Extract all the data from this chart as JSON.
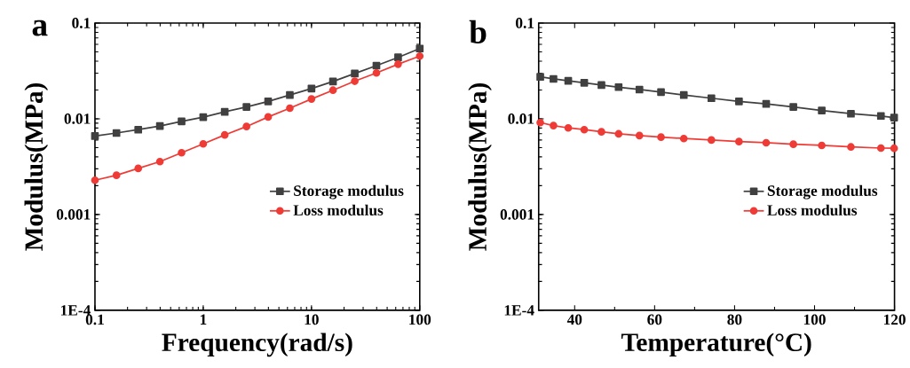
{
  "chart_data": [
    {
      "type": "line",
      "title": "a",
      "xlabel": "Frequency(rad/s)",
      "ylabel": "Modulus(MPa)",
      "log": "xy",
      "legend": "right",
      "grid": false,
      "x": [
        0.1,
        0.158,
        0.251,
        0.398,
        0.631,
        1,
        1.58,
        2.51,
        3.98,
        6.31,
        10,
        15.8,
        25.1,
        39.8,
        63.1,
        100
      ],
      "xlim": [
        0.1,
        100
      ],
      "xticks": [
        0.1,
        1,
        10,
        100
      ],
      "ylim": [
        0.0001,
        0.1
      ],
      "yticks": [
        {
          "value": 0.0001,
          "label": "1E-4"
        },
        0.001,
        0.01,
        0.1
      ],
      "series": [
        {
          "name": "Storage modulus",
          "color": "#404040",
          "marker": "square",
          "values": [
            0.0066,
            0.0071,
            0.0077,
            0.0084,
            0.0094,
            0.0104,
            0.0118,
            0.0133,
            0.0152,
            0.0177,
            0.0207,
            0.0245,
            0.0297,
            0.0359,
            0.0438,
            0.0542
          ]
        },
        {
          "name": "Loss modulus",
          "color": "#ef3b36",
          "marker": "circle",
          "values": [
            0.00228,
            0.00257,
            0.00303,
            0.00357,
            0.00442,
            0.00547,
            0.00678,
            0.0083,
            0.01045,
            0.0129,
            0.0161,
            0.0199,
            0.0247,
            0.0301,
            0.0372,
            0.0452
          ]
        }
      ]
    },
    {
      "type": "line",
      "title": "b",
      "xlabel": "Temperature(°C)",
      "ylabel": "Modulus(MPa)",
      "log": "y",
      "legend": "right",
      "grid": false,
      "x": [
        31.4,
        34.7,
        38.4,
        42.4,
        46.7,
        51.0,
        56.2,
        61.6,
        67.3,
        74.2,
        81.1,
        87.9,
        94.7,
        101.8,
        109.1,
        116.6,
        119.9
      ],
      "xlim": [
        31,
        120
      ],
      "xticks": [
        40,
        60,
        80,
        100,
        120
      ],
      "ylim": [
        0.0001,
        0.1
      ],
      "yticks": [
        {
          "value": 0.0001,
          "label": "1E-4"
        },
        0.001,
        0.01,
        0.1
      ],
      "series": [
        {
          "name": "Storage modulus",
          "color": "#404040",
          "marker": "square",
          "values": [
            0.0274,
            0.0261,
            0.0249,
            0.0238,
            0.0225,
            0.0214,
            0.0202,
            0.019,
            0.0177,
            0.0164,
            0.0152,
            0.0143,
            0.0133,
            0.0122,
            0.0113,
            0.0107,
            0.0103
          ]
        },
        {
          "name": "Loss modulus",
          "color": "#ef3b36",
          "marker": "circle",
          "values": [
            0.00912,
            0.00849,
            0.00803,
            0.0077,
            0.00731,
            0.00696,
            0.00668,
            0.00643,
            0.00622,
            0.006,
            0.00578,
            0.00562,
            0.00542,
            0.00527,
            0.00508,
            0.00494,
            0.00492
          ]
        }
      ]
    }
  ]
}
